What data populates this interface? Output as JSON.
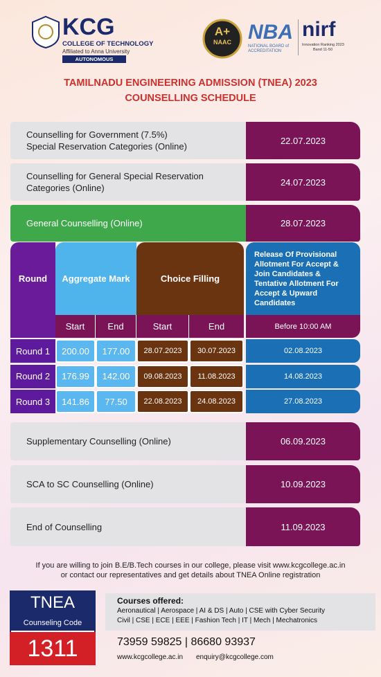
{
  "header": {
    "logo": {
      "name": "KCG",
      "subtitle": "COLLEGE OF TECHNOLOGY",
      "affiliation": "Affiliated to Anna University",
      "status": "AUTONOMOUS"
    },
    "badges": [
      {
        "grade": "A+",
        "label": "NAAC"
      },
      {
        "name": "NBA",
        "label": "NATIONAL BOARD of ACCREDITATION"
      },
      {
        "name": "nirf",
        "label": "Innovation Ranking 2023",
        "band": "Band 11-50"
      }
    ]
  },
  "title": [
    "TAMILNADU ENGINEERING ADMISSION (TNEA) 2023",
    "COUNSELLING SCHEDULE"
  ],
  "schedule_top": [
    {
      "event": "Counselling for Government (7.5%)\nSpecial Reservation Categories (Online)",
      "date": "22.07.2023"
    },
    {
      "event": "Counselling for General Special Reservation\nCategories (Online)",
      "date": "24.07.2023"
    },
    {
      "event": "General Counselling (Online)",
      "date": "28.07.2023"
    }
  ],
  "table": {
    "headers": [
      "Round",
      "Aggregate Mark",
      "Choice Filling",
      "Release Of Provisional Allotment For Accept & Join Candidates & Tentative Allotment For Accept & Upward Candidates"
    ],
    "subheaders": [
      "Start",
      "End",
      "Start",
      "End",
      "Before 10:00 AM"
    ],
    "rows": [
      [
        "Round 1",
        "200.00",
        "177.00",
        "28.07.2023",
        "30.07.2023",
        "02.08.2023"
      ],
      [
        "Round 2",
        "176.99",
        "142.00",
        "09.08.2023",
        "11.08.2023",
        "14.08.2023"
      ],
      [
        "Round 3",
        "141.86",
        "77.50",
        "22.08.2023",
        "24.08.2023",
        "27.08.2023"
      ]
    ]
  },
  "schedule_bottom": [
    {
      "event": "Supplementary Counselling (Online)",
      "date": "06.09.2023"
    },
    {
      "event": "SCA to SC Counselling (Online)",
      "date": "10.09.2023"
    },
    {
      "event": "End of Counselling",
      "date": "11.09.2023"
    }
  ],
  "footer": {
    "note": "If you are willing to join B.E/B.Tech courses in our college, please visit www.kcgcollege.ac.in\nor contact our representatives and get details about TNEA Online registration",
    "tnea": {
      "label": "TNEA",
      "sublabel": "Counseling Code",
      "code": "1311"
    },
    "courses_title": "Courses offered:",
    "courses": [
      "Aeronautical | Aerospace | AI & DS | Auto | CSE with Cyber Security",
      "Civil | CSE | ECE | EEE | Fashion Tech | IT | Mech | Mechatronics"
    ],
    "phone": "73959 59825 | 86680 93937",
    "web": "www.kcgcollege.ac.in",
    "email": "enquiry@kcgcollege.com"
  }
}
